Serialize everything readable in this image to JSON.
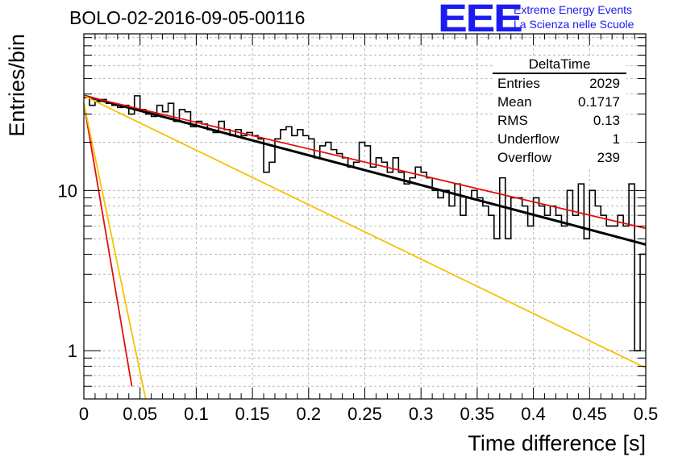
{
  "header": {
    "run_title": "BOLO-02-2016-09-05-00116",
    "logo_text": "EEE",
    "logo_line1": "Extreme Energy Events",
    "logo_line2": "La Scienza nelle Scuole",
    "logo_color": "#1b1bf2"
  },
  "stats_box": {
    "title": "DeltaTime",
    "rows": [
      {
        "label": "Entries",
        "value": "2029"
      },
      {
        "label": "Mean",
        "value": "0.1717"
      },
      {
        "label": "RMS",
        "value": "0.13"
      },
      {
        "label": "Underflow",
        "value": "1"
      },
      {
        "label": "Overflow",
        "value": "239"
      }
    ]
  },
  "chart_data": {
    "type": "line",
    "xlabel": "Time difference [s]",
    "ylabel": "Entries/bin",
    "xlim": [
      0,
      0.5
    ],
    "ylim": [
      0.5,
      95
    ],
    "y_scale": "log",
    "grid": true,
    "x_ticks": [
      "0",
      "0.05",
      "0.1",
      "0.15",
      "0.2",
      "0.25",
      "0.3",
      "0.35",
      "0.4",
      "0.45",
      "0.5"
    ],
    "y_ticks": [
      "1",
      "10"
    ],
    "histogram": {
      "color": "#000000",
      "bin_width": 0.005,
      "values": [
        38,
        34,
        36,
        37,
        35,
        34,
        33,
        34,
        30,
        39,
        32,
        30,
        29,
        34,
        31,
        35,
        27,
        32,
        31,
        25,
        27,
        26,
        24,
        23,
        27,
        24,
        22,
        24,
        22,
        23,
        22,
        21,
        13,
        15,
        21,
        24,
        25,
        22,
        24,
        22,
        21,
        16,
        19,
        20,
        18,
        17,
        16,
        14,
        15,
        20,
        19,
        14,
        16,
        15,
        13,
        16,
        13,
        11,
        12,
        14,
        13,
        12,
        10,
        9,
        10,
        8,
        11,
        7,
        9,
        10,
        9,
        8,
        7,
        5,
        12,
        5,
        9,
        9,
        8,
        6,
        9,
        8,
        7,
        8,
        7,
        6,
        10,
        7,
        11,
        5,
        10,
        8,
        7,
        6,
        6,
        7,
        6,
        11,
        1,
        4
      ]
    },
    "series": [
      {
        "color": "#000000",
        "x": [
          0,
          0.5
        ],
        "y": [
          39,
          4.6
        ]
      },
      {
        "color": "#e01010",
        "x": [
          0,
          0.5
        ],
        "y": [
          39,
          5.8
        ]
      },
      {
        "color": "#f5c300",
        "x": [
          0,
          0.5
        ],
        "y": [
          39,
          0.78
        ]
      },
      {
        "color": "#e01010",
        "x": [
          0,
          0.0427
        ],
        "y": [
          35,
          0.6
        ]
      },
      {
        "color": "#f5c300",
        "x": [
          0,
          0.055
        ],
        "y": [
          35,
          0.5
        ]
      }
    ]
  }
}
